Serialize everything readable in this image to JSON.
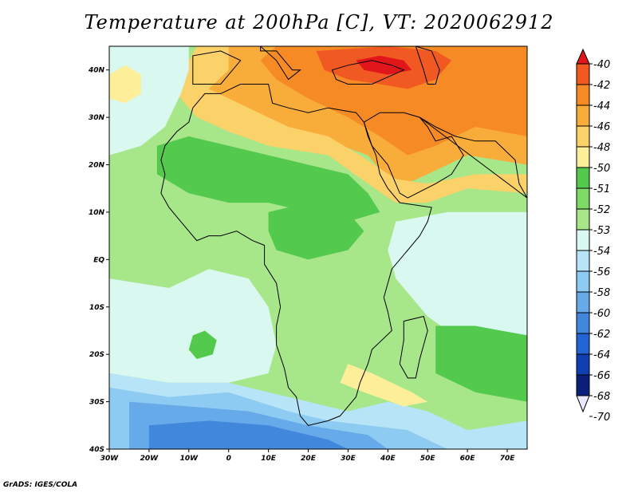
{
  "title": "Temperature at 200hPa [C], VT: 2020062912",
  "credit": "GrADS: IGES/COLA",
  "map": {
    "lon_range": [
      -30,
      75
    ],
    "lat_range": [
      -40,
      45
    ],
    "x_ticks": [
      {
        "value": -30,
        "label": "30W"
      },
      {
        "value": -20,
        "label": "20W"
      },
      {
        "value": -10,
        "label": "10W"
      },
      {
        "value": 0,
        "label": "0"
      },
      {
        "value": 10,
        "label": "10E"
      },
      {
        "value": 20,
        "label": "20E"
      },
      {
        "value": 30,
        "label": "30E"
      },
      {
        "value": 40,
        "label": "40E"
      },
      {
        "value": 50,
        "label": "50E"
      },
      {
        "value": 60,
        "label": "60E"
      },
      {
        "value": 70,
        "label": "70E"
      }
    ],
    "y_ticks": [
      {
        "value": 40,
        "label": "40N"
      },
      {
        "value": 30,
        "label": "30N"
      },
      {
        "value": 20,
        "label": "20N"
      },
      {
        "value": 10,
        "label": "10N"
      },
      {
        "value": 0,
        "label": "EQ"
      },
      {
        "value": -10,
        "label": "10S"
      },
      {
        "value": -20,
        "label": "20S"
      },
      {
        "value": -30,
        "label": "30S"
      },
      {
        "value": -40,
        "label": "40S"
      }
    ]
  },
  "colorbar": {
    "labels": [
      "-40",
      "-42",
      "-44",
      "-46",
      "-48",
      "-50",
      "-51",
      "-52",
      "-53",
      "-54",
      "-56",
      "-58",
      "-60",
      "-62",
      "-64",
      "-66",
      "-68",
      "-70"
    ],
    "colors": [
      "#e0161a",
      "#f05a22",
      "#f68b25",
      "#f8ac3a",
      "#fbd16a",
      "#fdee9a",
      "#53c94d",
      "#7ed965",
      "#a8e68a",
      "#d9f8f0",
      "#b7e5f7",
      "#8ecbf2",
      "#66aaea",
      "#4188dd",
      "#2264d4",
      "#0f3fb0",
      "#0a1f7a",
      "#e8e8ff"
    ]
  },
  "field_regions": [
    {
      "name": "base",
      "color": "#a8e68a",
      "pts": [
        [
          -30,
          45
        ],
        [
          75,
          45
        ],
        [
          75,
          -40
        ],
        [
          -30,
          -40
        ]
      ]
    },
    {
      "name": "warm-north-46",
      "color": "#f8ac3a",
      "pts": [
        [
          0,
          45
        ],
        [
          75,
          45
        ],
        [
          75,
          20
        ],
        [
          60,
          22
        ],
        [
          50,
          18
        ],
        [
          42,
          15
        ],
        [
          35,
          22
        ],
        [
          25,
          25
        ],
        [
          15,
          27
        ],
        [
          5,
          30
        ],
        [
          -5,
          34
        ],
        [
          -10,
          38
        ],
        [
          -8,
          43
        ]
      ]
    },
    {
      "name": "warm-north-48",
      "color": "#fbd16a",
      "pts": [
        [
          -8,
          45
        ],
        [
          0,
          45
        ],
        [
          0,
          40
        ],
        [
          -5,
          36
        ],
        [
          5,
          32
        ],
        [
          15,
          28
        ],
        [
          25,
          26
        ],
        [
          33,
          22
        ],
        [
          42,
          17
        ],
        [
          50,
          16
        ],
        [
          62,
          18
        ],
        [
          75,
          18
        ],
        [
          75,
          14
        ],
        [
          60,
          15
        ],
        [
          50,
          12
        ],
        [
          42,
          12
        ],
        [
          35,
          16
        ],
        [
          25,
          22
        ],
        [
          10,
          24
        ],
        [
          0,
          27
        ],
        [
          -8,
          30
        ],
        [
          -14,
          36
        ]
      ]
    },
    {
      "name": "warm-north-44",
      "color": "#f68b25",
      "pts": [
        [
          12,
          45
        ],
        [
          75,
          45
        ],
        [
          75,
          26
        ],
        [
          62,
          28
        ],
        [
          52,
          24
        ],
        [
          45,
          22
        ],
        [
          38,
          26
        ],
        [
          30,
          30
        ],
        [
          20,
          34
        ],
        [
          12,
          38
        ],
        [
          8,
          42
        ]
      ]
    },
    {
      "name": "warm-north-42",
      "color": "#f05a22",
      "pts": [
        [
          22,
          44
        ],
        [
          40,
          45
        ],
        [
          52,
          44
        ],
        [
          56,
          42
        ],
        [
          52,
          38
        ],
        [
          45,
          36
        ],
        [
          38,
          37
        ],
        [
          30,
          38
        ],
        [
          24,
          40
        ]
      ]
    },
    {
      "name": "warm-north-40",
      "color": "#e0161a",
      "pts": [
        [
          32,
          42
        ],
        [
          38,
          43
        ],
        [
          44,
          42
        ],
        [
          46,
          40
        ],
        [
          40,
          39
        ],
        [
          34,
          40
        ]
      ]
    },
    {
      "name": "atl-nw-pale",
      "color": "#d9f8f0",
      "pts": [
        [
          -30,
          45
        ],
        [
          -10,
          45
        ],
        [
          -10,
          40
        ],
        [
          -12,
          35
        ],
        [
          -16,
          28
        ],
        [
          -22,
          24
        ],
        [
          -30,
          22
        ]
      ]
    },
    {
      "name": "atl-nw-yellow",
      "color": "#fdee9a",
      "pts": [
        [
          -30,
          39
        ],
        [
          -26,
          41
        ],
        [
          -22,
          39
        ],
        [
          -22,
          35
        ],
        [
          -26,
          33
        ],
        [
          -30,
          34
        ]
      ]
    },
    {
      "name": "sahel-green",
      "color": "#53c94d",
      "pts": [
        [
          -18,
          24
        ],
        [
          -10,
          26
        ],
        [
          0,
          24
        ],
        [
          10,
          22
        ],
        [
          20,
          20
        ],
        [
          30,
          18
        ],
        [
          35,
          14
        ],
        [
          38,
          10
        ],
        [
          30,
          8
        ],
        [
          20,
          10
        ],
        [
          10,
          12
        ],
        [
          0,
          12
        ],
        [
          -10,
          14
        ],
        [
          -18,
          18
        ]
      ]
    },
    {
      "name": "central-green",
      "color": "#53c94d",
      "pts": [
        [
          10,
          10
        ],
        [
          20,
          12
        ],
        [
          30,
          10
        ],
        [
          34,
          6
        ],
        [
          30,
          2
        ],
        [
          20,
          0
        ],
        [
          12,
          2
        ],
        [
          10,
          6
        ]
      ]
    },
    {
      "name": "indian-ocean-pale",
      "color": "#d9f8f0",
      "pts": [
        [
          42,
          8
        ],
        [
          55,
          10
        ],
        [
          75,
          10
        ],
        [
          75,
          -22
        ],
        [
          60,
          -18
        ],
        [
          50,
          -12
        ],
        [
          42,
          -4
        ],
        [
          40,
          2
        ]
      ]
    },
    {
      "name": "south-atl-pale",
      "color": "#d9f8f0",
      "pts": [
        [
          -30,
          -4
        ],
        [
          -15,
          -6
        ],
        [
          -5,
          -2
        ],
        [
          5,
          -4
        ],
        [
          10,
          -10
        ],
        [
          12,
          -18
        ],
        [
          10,
          -24
        ],
        [
          0,
          -26
        ],
        [
          -15,
          -26
        ],
        [
          -30,
          -24
        ]
      ]
    },
    {
      "name": "south-atl-green",
      "color": "#53c94d",
      "pts": [
        [
          -9,
          -16
        ],
        [
          -6,
          -15
        ],
        [
          -3,
          -17
        ],
        [
          -4,
          -20
        ],
        [
          -8,
          -21
        ],
        [
          -10,
          -19
        ]
      ]
    },
    {
      "name": "southern-lightblue",
      "color": "#b7e5f7",
      "pts": [
        [
          -30,
          -24
        ],
        [
          -15,
          -26
        ],
        [
          0,
          -26
        ],
        [
          10,
          -28
        ],
        [
          20,
          -30
        ],
        [
          30,
          -32
        ],
        [
          40,
          -30
        ],
        [
          50,
          -32
        ],
        [
          60,
          -36
        ],
        [
          75,
          -34
        ],
        [
          75,
          -40
        ],
        [
          -30,
          -40
        ]
      ]
    },
    {
      "name": "southern-blue58",
      "color": "#8ecbf2",
      "pts": [
        [
          -30,
          -27
        ],
        [
          -15,
          -29
        ],
        [
          0,
          -28
        ],
        [
          15,
          -32
        ],
        [
          25,
          -34
        ],
        [
          35,
          -35
        ],
        [
          45,
          -36
        ],
        [
          55,
          -40
        ],
        [
          -30,
          -40
        ]
      ]
    },
    {
      "name": "southern-blue60",
      "color": "#66aaea",
      "pts": [
        [
          -25,
          -30
        ],
        [
          -10,
          -31
        ],
        [
          5,
          -32
        ],
        [
          20,
          -35
        ],
        [
          35,
          -37
        ],
        [
          40,
          -40
        ],
        [
          -25,
          -40
        ]
      ]
    },
    {
      "name": "southern-blue62",
      "color": "#4188dd",
      "pts": [
        [
          -20,
          -35
        ],
        [
          -5,
          -34
        ],
        [
          10,
          -35
        ],
        [
          25,
          -38
        ],
        [
          30,
          -40
        ],
        [
          -20,
          -40
        ]
      ]
    },
    {
      "name": "south-indian-green",
      "color": "#53c94d",
      "pts": [
        [
          52,
          -14
        ],
        [
          62,
          -14
        ],
        [
          75,
          -16
        ],
        [
          75,
          -30
        ],
        [
          62,
          -28
        ],
        [
          52,
          -24
        ]
      ]
    },
    {
      "name": "southeast-yellow",
      "color": "#fdee9a",
      "pts": [
        [
          30,
          -22
        ],
        [
          36,
          -24
        ],
        [
          46,
          -28
        ],
        [
          50,
          -30
        ],
        [
          44,
          -31
        ],
        [
          34,
          -28
        ],
        [
          28,
          -26
        ]
      ]
    }
  ],
  "coastlines": [
    {
      "name": "africa",
      "pts": [
        [
          -17,
          21
        ],
        [
          -16,
          24
        ],
        [
          -13,
          27
        ],
        [
          -10,
          29
        ],
        [
          -9,
          32
        ],
        [
          -6,
          35
        ],
        [
          -2,
          35
        ],
        [
          3,
          37
        ],
        [
          10,
          37
        ],
        [
          11,
          33
        ],
        [
          15,
          32
        ],
        [
          20,
          31
        ],
        [
          25,
          32
        ],
        [
          32,
          31
        ],
        [
          34,
          29
        ],
        [
          35,
          26
        ],
        [
          37,
          22
        ],
        [
          38,
          18
        ],
        [
          40,
          15
        ],
        [
          43,
          12
        ],
        [
          51,
          11
        ],
        [
          50,
          8
        ],
        [
          48,
          5
        ],
        [
          43,
          0
        ],
        [
          41,
          -2
        ],
        [
          40,
          -5
        ],
        [
          39,
          -8
        ],
        [
          40,
          -11
        ],
        [
          41,
          -15
        ],
        [
          36,
          -19
        ],
        [
          35,
          -22
        ],
        [
          33,
          -26
        ],
        [
          32,
          -29
        ],
        [
          28,
          -33
        ],
        [
          25,
          -34
        ],
        [
          20,
          -35
        ],
        [
          18,
          -33
        ],
        [
          17,
          -29
        ],
        [
          15,
          -27
        ],
        [
          14,
          -23
        ],
        [
          12,
          -18
        ],
        [
          12,
          -14
        ],
        [
          13,
          -10
        ],
        [
          12,
          -5
        ],
        [
          9,
          -1
        ],
        [
          9,
          3
        ],
        [
          6,
          4
        ],
        [
          2,
          6
        ],
        [
          -2,
          5
        ],
        [
          -5,
          5
        ],
        [
          -8,
          4
        ],
        [
          -11,
          7
        ],
        [
          -13,
          9
        ],
        [
          -15,
          11
        ],
        [
          -17,
          14
        ],
        [
          -16,
          18
        ]
      ]
    },
    {
      "name": "madagascar",
      "pts": [
        [
          44,
          -13
        ],
        [
          49,
          -12
        ],
        [
          50,
          -15
        ],
        [
          48,
          -21
        ],
        [
          47,
          -25
        ],
        [
          45,
          -25
        ],
        [
          43,
          -22
        ],
        [
          44,
          -17
        ]
      ]
    },
    {
      "name": "iberia",
      "pts": [
        [
          -9,
          37
        ],
        [
          -9,
          43
        ],
        [
          -2,
          44
        ],
        [
          3,
          42
        ],
        [
          0,
          39
        ],
        [
          -2,
          37
        ]
      ]
    },
    {
      "name": "italy",
      "pts": [
        [
          8,
          44
        ],
        [
          12,
          44
        ],
        [
          16,
          40
        ],
        [
          18,
          40
        ],
        [
          15,
          38
        ],
        [
          12,
          42
        ],
        [
          8,
          45
        ]
      ]
    },
    {
      "name": "arabia",
      "pts": [
        [
          34,
          29
        ],
        [
          36,
          24
        ],
        [
          40,
          20
        ],
        [
          43,
          14
        ],
        [
          45,
          13
        ],
        [
          52,
          16
        ],
        [
          56,
          18
        ],
        [
          59,
          22
        ],
        [
          56,
          26
        ],
        [
          52,
          25
        ],
        [
          50,
          28
        ],
        [
          48,
          30
        ],
        [
          44,
          31
        ],
        [
          38,
          31
        ]
      ]
    },
    {
      "name": "asia-minor",
      "pts": [
        [
          26,
          40
        ],
        [
          30,
          41
        ],
        [
          36,
          42
        ],
        [
          41,
          41
        ],
        [
          44,
          40
        ],
        [
          36,
          37
        ],
        [
          30,
          37
        ],
        [
          27,
          38
        ]
      ]
    },
    {
      "name": "caspian",
      "pts": [
        [
          47,
          45
        ],
        [
          51,
          44
        ],
        [
          53,
          40
        ],
        [
          52,
          37
        ],
        [
          50,
          37
        ],
        [
          49,
          40
        ]
      ]
    },
    {
      "name": "persia-coast",
      "pts": [
        [
          48,
          30
        ],
        [
          52,
          28
        ],
        [
          57,
          26
        ],
        [
          62,
          25
        ],
        [
          67,
          25
        ],
        [
          72,
          21
        ],
        [
          73,
          16
        ],
        [
          75,
          13
        ]
      ]
    }
  ]
}
